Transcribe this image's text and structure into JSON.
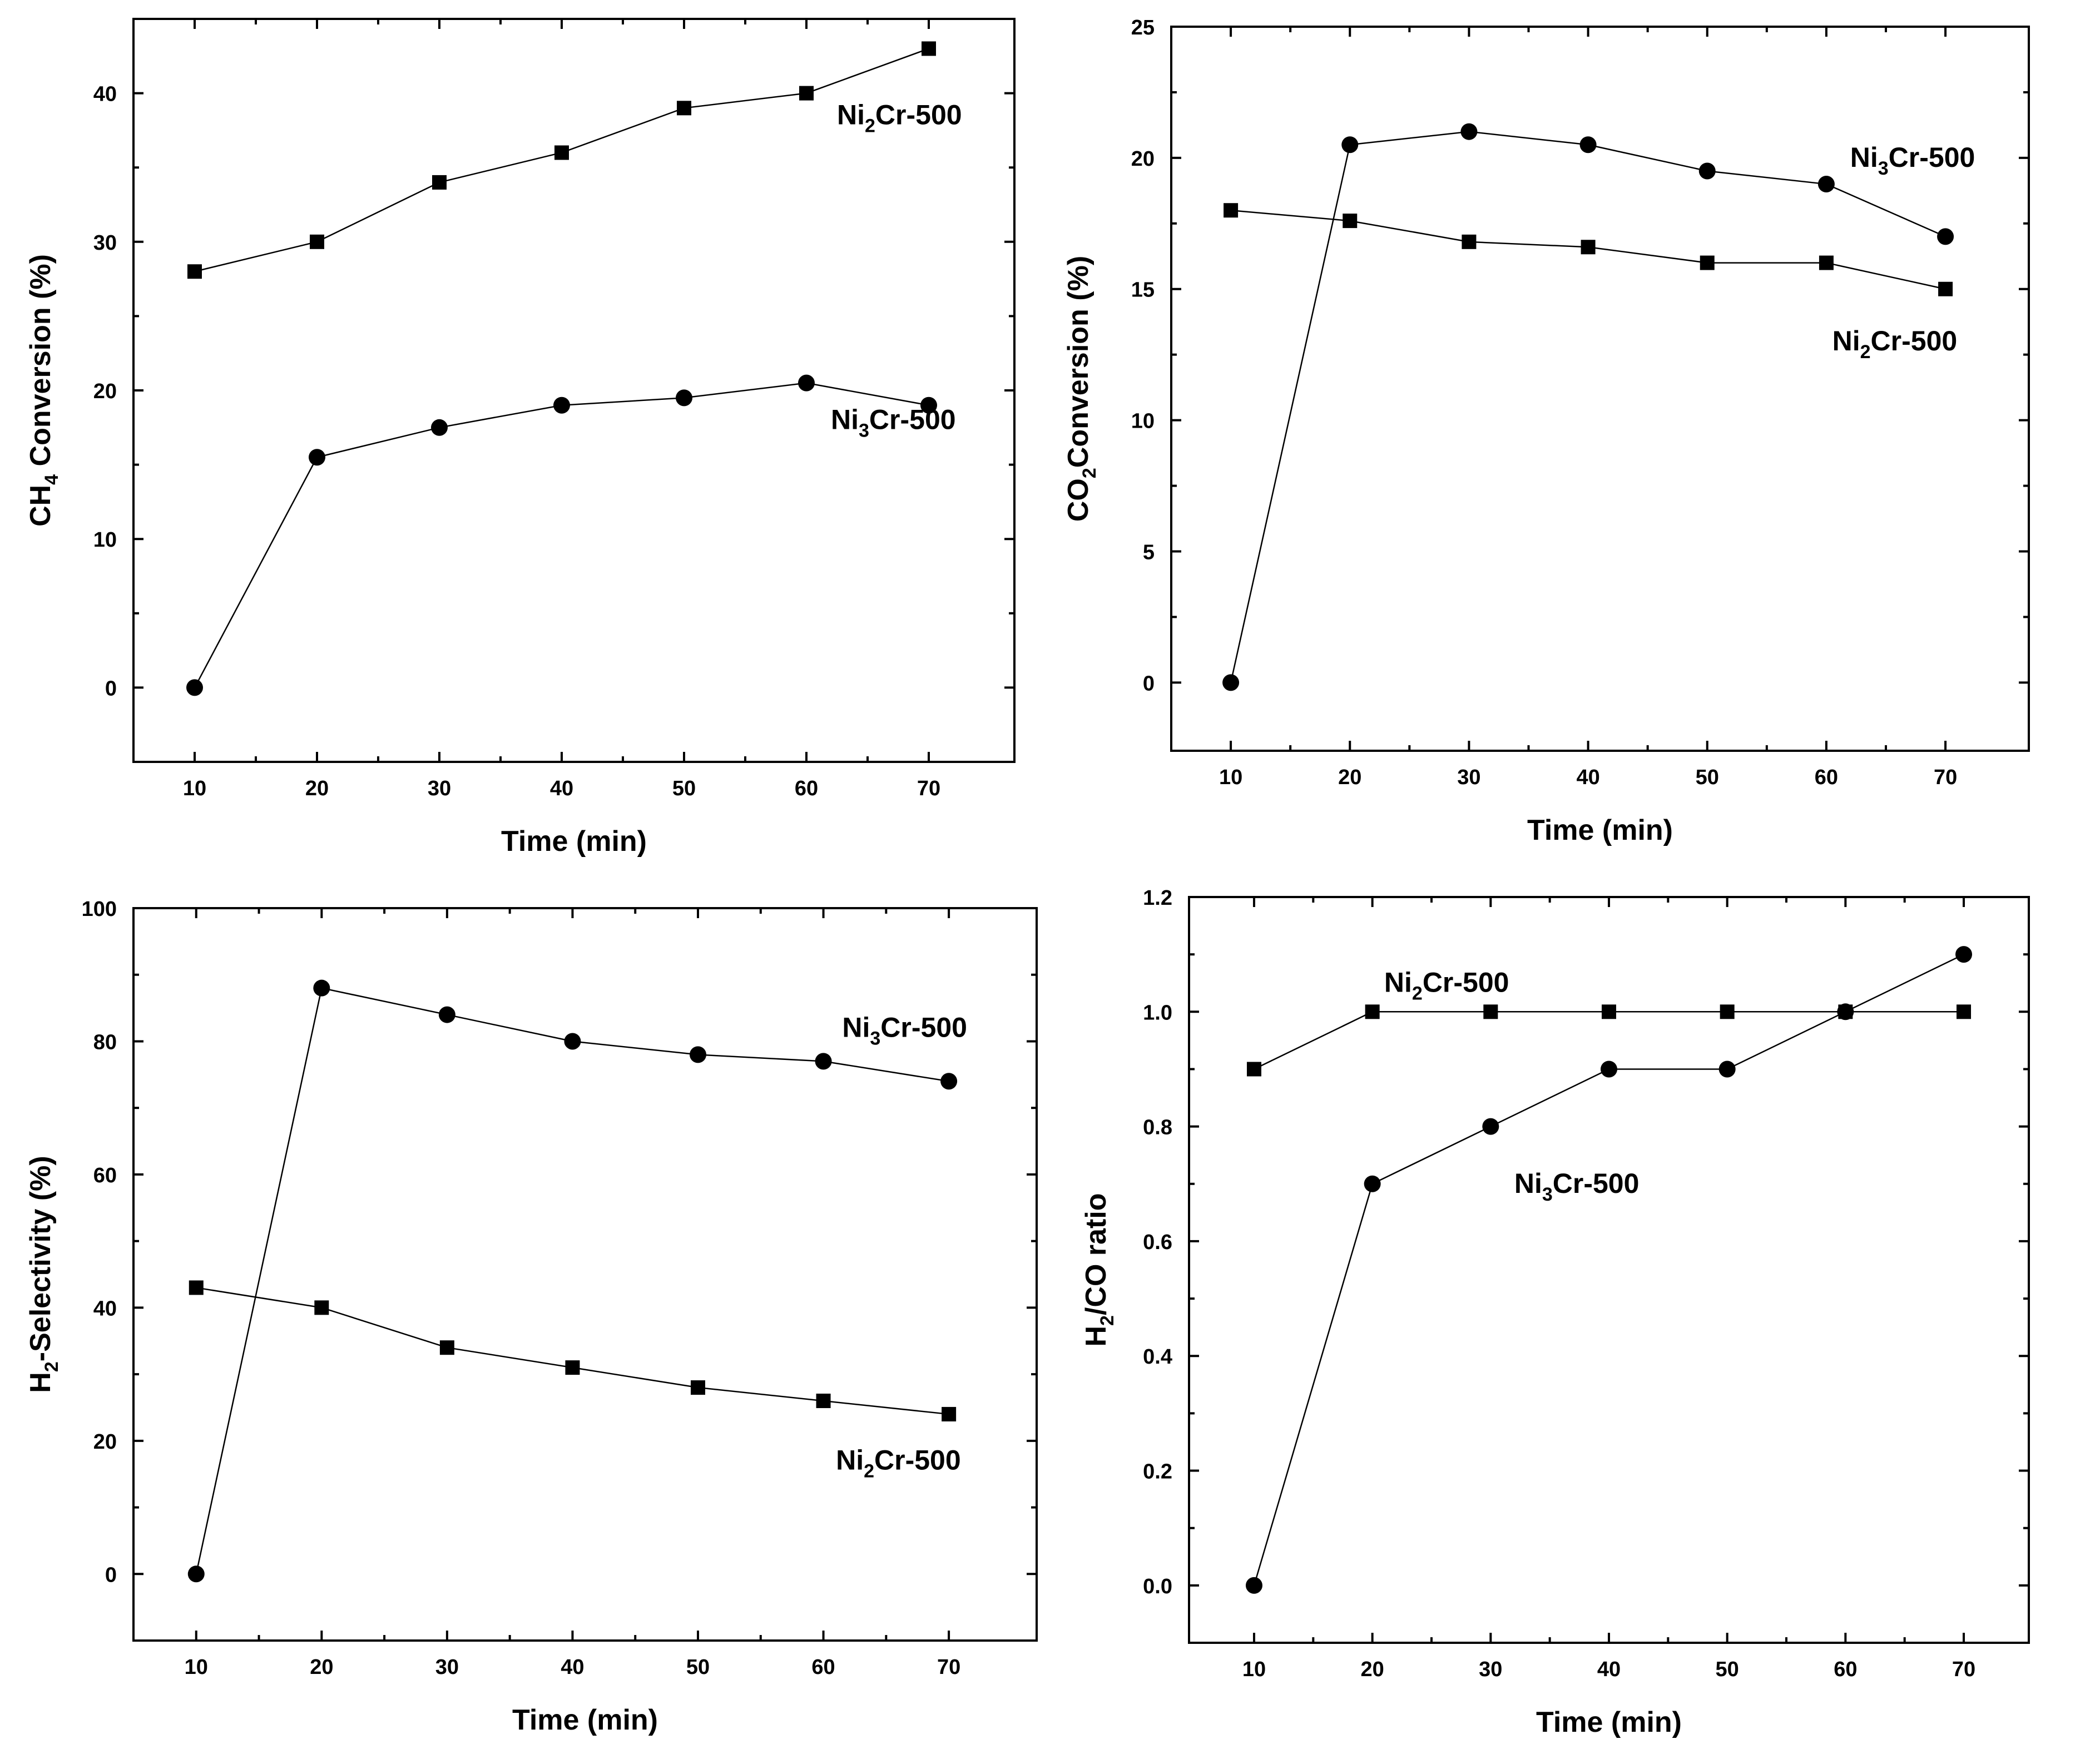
{
  "chart_data": [
    {
      "type": "line",
      "panel": "top-left",
      "title": "",
      "xlabel": "Time (min)",
      "ylabel": {
        "pre": "CH",
        "sub": "4",
        "post": " Conversion (%)"
      },
      "xlim": [
        5,
        77
      ],
      "ylim": [
        -5,
        45
      ],
      "xticks": [
        10,
        20,
        30,
        40,
        50,
        60,
        70
      ],
      "yticks": [
        0,
        10,
        20,
        30,
        40
      ],
      "x": [
        10,
        20,
        30,
        40,
        50,
        60,
        70
      ],
      "series": [
        {
          "name": "Ni2Cr-500",
          "marker": "square",
          "values": [
            28,
            30,
            34,
            36,
            39,
            40,
            43
          ],
          "label": {
            "pre": "Ni",
            "sub": "2",
            "post": "Cr-500",
            "at": [
              62.5,
              38.5
            ]
          }
        },
        {
          "name": "Ni3Cr-500",
          "marker": "circle",
          "values": [
            0,
            15.5,
            17.5,
            19,
            19.5,
            20.5,
            19
          ],
          "label": {
            "pre": "Ni",
            "sub": "3",
            "post": "Cr-500",
            "at": [
              62,
              18
            ]
          }
        }
      ]
    },
    {
      "type": "line",
      "panel": "top-right",
      "title": "",
      "xlabel": "Time (min)",
      "ylabel": {
        "pre": "CO",
        "sub": "2",
        "post": "Conversion (%)"
      },
      "xlim": [
        5,
        77
      ],
      "ylim": [
        -2.6,
        25
      ],
      "xticks": [
        10,
        20,
        30,
        40,
        50,
        60,
        70
      ],
      "yticks": [
        0,
        5,
        10,
        15,
        20,
        25
      ],
      "x": [
        10,
        20,
        30,
        40,
        50,
        60,
        70
      ],
      "series": [
        {
          "name": "Ni3Cr-500",
          "marker": "circle",
          "values": [
            0,
            20.5,
            21,
            20.5,
            19.5,
            19,
            17
          ],
          "label": {
            "pre": "Ni",
            "sub": "3",
            "post": "Cr-500",
            "at": [
              62,
              20
            ]
          }
        },
        {
          "name": "Ni2Cr-500",
          "marker": "square",
          "values": [
            18,
            17.6,
            16.8,
            16.6,
            16,
            16,
            15
          ],
          "label": {
            "pre": "Ni",
            "sub": "2",
            "post": "Cr-500",
            "at": [
              60.5,
              13
            ]
          }
        }
      ]
    },
    {
      "type": "line",
      "panel": "bottom-left",
      "title": "",
      "xlabel": "Time (min)",
      "ylabel": {
        "pre": "H",
        "sub": "2",
        "post": "-Selectivity  (%)"
      },
      "xlim": [
        5,
        77
      ],
      "ylim": [
        -10,
        100
      ],
      "xticks": [
        10,
        20,
        30,
        40,
        50,
        60,
        70
      ],
      "yticks": [
        0,
        20,
        40,
        60,
        80,
        100
      ],
      "x": [
        10,
        20,
        30,
        40,
        50,
        60,
        70
      ],
      "series": [
        {
          "name": "Ni3Cr-500",
          "marker": "circle",
          "values": [
            0,
            88,
            84,
            80,
            78,
            77,
            74
          ],
          "label": {
            "pre": "Ni",
            "sub": "3",
            "post": "Cr-500",
            "at": [
              61.5,
              82
            ]
          }
        },
        {
          "name": "Ni2Cr-500",
          "marker": "square",
          "values": [
            43,
            40,
            34,
            31,
            28,
            26,
            24
          ],
          "label": {
            "pre": "Ni",
            "sub": "2",
            "post": "Cr-500",
            "at": [
              61,
              17
            ]
          }
        }
      ]
    },
    {
      "type": "line",
      "panel": "bottom-right",
      "title": "",
      "xlabel": "Time (min)",
      "ylabel": {
        "pre": "H",
        "sub": "2",
        "post": "/CO ratio"
      },
      "xlim": [
        4.5,
        75.5
      ],
      "ylim": [
        -0.1,
        1.2
      ],
      "xticks": [
        10,
        20,
        30,
        40,
        50,
        60,
        70
      ],
      "yticks": [
        0.0,
        0.2,
        0.4,
        0.6,
        0.8,
        1.0,
        1.2
      ],
      "ytick_decimals": 1,
      "x": [
        10,
        20,
        30,
        40,
        50,
        60,
        70
      ],
      "series": [
        {
          "name": "Ni2Cr-500",
          "marker": "square",
          "values": [
            0.9,
            1.0,
            1.0,
            1.0,
            1.0,
            1.0,
            1.0
          ],
          "label": {
            "pre": "Ni",
            "sub": "2",
            "post": "Cr-500",
            "at": [
              21,
              1.05
            ]
          }
        },
        {
          "name": "Ni3Cr-500",
          "marker": "circle",
          "values": [
            0.0,
            0.7,
            0.8,
            0.9,
            0.9,
            1.0,
            1.1
          ],
          "label": {
            "pre": "Ni",
            "sub": "3",
            "post": "Cr-500",
            "at": [
              32,
              0.7
            ]
          }
        }
      ]
    }
  ]
}
